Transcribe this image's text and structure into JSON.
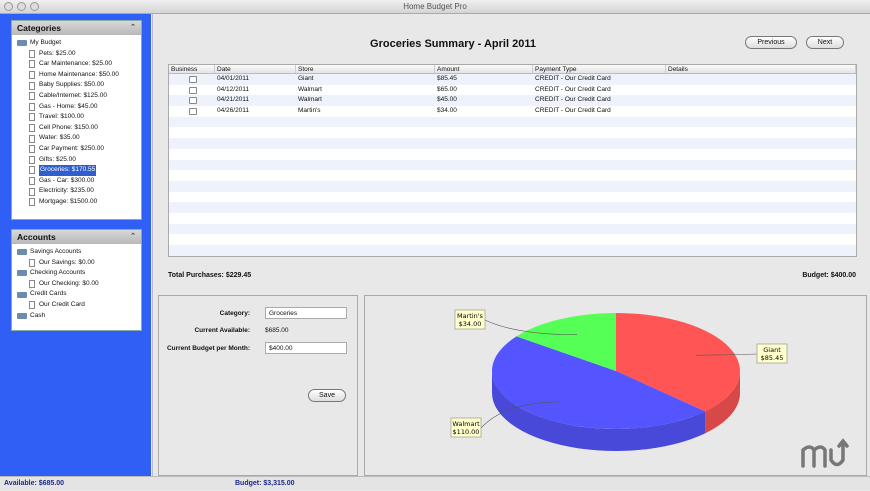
{
  "window": {
    "title": "Home Budget Pro"
  },
  "categories": {
    "title": "Categories",
    "root": "My Budget",
    "items": [
      "Pets: $25.00",
      "Car Maintenance: $25.00",
      "Home Maintenance: $50.00",
      "Baby Supplies: $50.00",
      "Cable/Internet: $125.00",
      "Gas - Home: $45.00",
      "Travel: $100.00",
      "Cell Phone: $150.00",
      "Water: $35.00",
      "Car Payment: $250.00",
      "Gifts: $25.00",
      "Groceries: $170.55",
      "Gas - Car: $300.00",
      "Electricity: $235.00",
      "Mortgage: $1500.00"
    ],
    "selected_index": 11
  },
  "accounts": {
    "title": "Accounts",
    "groups": [
      {
        "label": "Savings Accounts",
        "children": [
          "Our Savings: $0.00"
        ]
      },
      {
        "label": "Checking Accounts",
        "children": [
          "Our Checking: $0.00"
        ]
      },
      {
        "label": "Credit Cards",
        "children": [
          "Our Credit Card"
        ]
      },
      {
        "label": "Cash",
        "children": []
      }
    ]
  },
  "summary": {
    "title": "Groceries Summary - April 2011",
    "previous": "Previous",
    "next": "Next",
    "columns": [
      "Business",
      "Date",
      "Store",
      "Amount",
      "Payment Type",
      "Details"
    ],
    "rows": [
      {
        "business": false,
        "date": "04/01/2011",
        "store": "Giant",
        "amount": "$85.45",
        "payment": "CREDIT - Our Credit Card",
        "details": ""
      },
      {
        "business": false,
        "date": "04/12/2011",
        "store": "Walmart",
        "amount": "$65.00",
        "payment": "CREDIT - Our Credit Card",
        "details": ""
      },
      {
        "business": false,
        "date": "04/21/2011",
        "store": "Walmart",
        "amount": "$45.00",
        "payment": "CREDIT - Our Credit Card",
        "details": ""
      },
      {
        "business": false,
        "date": "04/26/2011",
        "store": "Martin's",
        "amount": "$34.00",
        "payment": "CREDIT - Our Credit Card",
        "details": ""
      }
    ],
    "total": "Total Purchases: $229.45",
    "budget": "Budget: $400.00"
  },
  "form": {
    "category_label": "Category:",
    "category_value": "Groceries",
    "available_label": "Current Available:",
    "available_value": "$685.00",
    "budget_label": "Current Budget per Month:",
    "budget_value": "$400.00",
    "save": "Save"
  },
  "chart_data": {
    "type": "pie",
    "style": "3d",
    "slices": [
      {
        "label": "Giant",
        "value": 85.45,
        "display": "$85.45",
        "color": "#ff5555"
      },
      {
        "label": "Walmart",
        "value": 110.0,
        "display": "$110.00",
        "color": "#5555ff"
      },
      {
        "label": "Martin's",
        "value": 34.0,
        "display": "$34.00",
        "color": "#55ff55"
      }
    ]
  },
  "watermark": "mu",
  "status": {
    "available": "Available: $685.00",
    "budget": "Budget: $3,315.00"
  }
}
